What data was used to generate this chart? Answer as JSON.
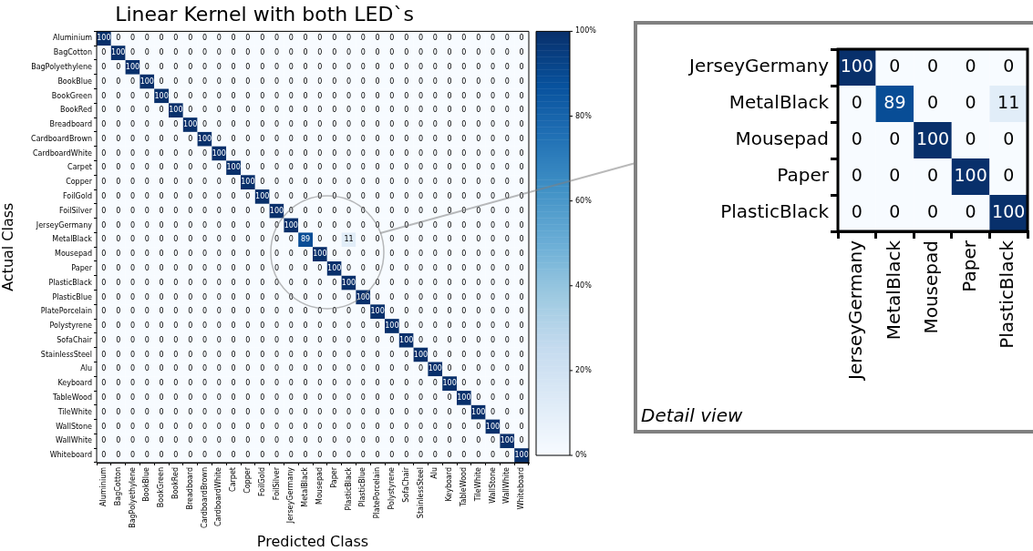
{
  "chart_data": [
    {
      "type": "heatmap",
      "title": "Linear Kernel with both LED`s",
      "xlabel": "Predicted Class",
      "ylabel": "Actual Class",
      "categories": [
        "Aluminium",
        "BagCotton",
        "BagPolyethylene",
        "BookBlue",
        "BookGreen",
        "BookRed",
        "Breadboard",
        "CardboardBrown",
        "CardboardWhite",
        "Carpet",
        "Copper",
        "FoilGold",
        "FoilSilver",
        "JerseyGermany",
        "MetalBlack",
        "Mousepad",
        "Paper",
        "PlasticBlack",
        "PlasticBlue",
        "PlatePorcelain",
        "Polystyrene",
        "SofaChair",
        "StainlessSteel",
        "Alu",
        "Keyboard",
        "TableWood",
        "TileWhite",
        "WallStone",
        "WallWhite",
        "Whiteboard"
      ],
      "y_categories": [
        "Aluminium",
        "BagCotton",
        "BagPolyethylene",
        "BookBlue",
        "BookGreen",
        "BookRed",
        "Breadboard",
        "CardboardBrown",
        "CardboardWhite",
        "Carpet",
        "Copper",
        "FoilGold",
        "FoilSilver",
        "JerseyGermany",
        "MetalBlack",
        "Mousepad",
        "Paper",
        "PlasticBlack",
        "PlasticBlue",
        "PlatePorcelain",
        "Polystyrene",
        "SofaChair",
        "StainlessSteel",
        "Alu",
        "Keyboard",
        "TableWood",
        "TileWhite",
        "WallStone",
        "WallWhite",
        "Whiteboard"
      ],
      "cells": [
        [
          100,
          0,
          0,
          0,
          0,
          0,
          0,
          0,
          0,
          0,
          0,
          0,
          0,
          0,
          0,
          0,
          0,
          0,
          0,
          0,
          0,
          0,
          0,
          0,
          0,
          0,
          0,
          0,
          0,
          0
        ],
        [
          0,
          100,
          0,
          0,
          0,
          0,
          0,
          0,
          0,
          0,
          0,
          0,
          0,
          0,
          0,
          0,
          0,
          0,
          0,
          0,
          0,
          0,
          0,
          0,
          0,
          0,
          0,
          0,
          0,
          0
        ],
        [
          0,
          0,
          100,
          0,
          0,
          0,
          0,
          0,
          0,
          0,
          0,
          0,
          0,
          0,
          0,
          0,
          0,
          0,
          0,
          0,
          0,
          0,
          0,
          0,
          0,
          0,
          0,
          0,
          0,
          0
        ],
        [
          0,
          0,
          0,
          100,
          0,
          0,
          0,
          0,
          0,
          0,
          0,
          0,
          0,
          0,
          0,
          0,
          0,
          0,
          0,
          0,
          0,
          0,
          0,
          0,
          0,
          0,
          0,
          0,
          0,
          0
        ],
        [
          0,
          0,
          0,
          0,
          100,
          0,
          0,
          0,
          0,
          0,
          0,
          0,
          0,
          0,
          0,
          0,
          0,
          0,
          0,
          0,
          0,
          0,
          0,
          0,
          0,
          0,
          0,
          0,
          0,
          0
        ],
        [
          0,
          0,
          0,
          0,
          0,
          100,
          0,
          0,
          0,
          0,
          0,
          0,
          0,
          0,
          0,
          0,
          0,
          0,
          0,
          0,
          0,
          0,
          0,
          0,
          0,
          0,
          0,
          0,
          0,
          0
        ],
        [
          0,
          0,
          0,
          0,
          0,
          0,
          100,
          0,
          0,
          0,
          0,
          0,
          0,
          0,
          0,
          0,
          0,
          0,
          0,
          0,
          0,
          0,
          0,
          0,
          0,
          0,
          0,
          0,
          0,
          0
        ],
        [
          0,
          0,
          0,
          0,
          0,
          0,
          0,
          100,
          0,
          0,
          0,
          0,
          0,
          0,
          0,
          0,
          0,
          0,
          0,
          0,
          0,
          0,
          0,
          0,
          0,
          0,
          0,
          0,
          0,
          0
        ],
        [
          0,
          0,
          0,
          0,
          0,
          0,
          0,
          0,
          100,
          0,
          0,
          0,
          0,
          0,
          0,
          0,
          0,
          0,
          0,
          0,
          0,
          0,
          0,
          0,
          0,
          0,
          0,
          0,
          0,
          0
        ],
        [
          0,
          0,
          0,
          0,
          0,
          0,
          0,
          0,
          0,
          100,
          0,
          0,
          0,
          0,
          0,
          0,
          0,
          0,
          0,
          0,
          0,
          0,
          0,
          0,
          0,
          0,
          0,
          0,
          0,
          0
        ],
        [
          0,
          0,
          0,
          0,
          0,
          0,
          0,
          0,
          0,
          0,
          100,
          0,
          0,
          0,
          0,
          0,
          0,
          0,
          0,
          0,
          0,
          0,
          0,
          0,
          0,
          0,
          0,
          0,
          0,
          0
        ],
        [
          0,
          0,
          0,
          0,
          0,
          0,
          0,
          0,
          0,
          0,
          0,
          100,
          0,
          0,
          0,
          0,
          0,
          0,
          0,
          0,
          0,
          0,
          0,
          0,
          0,
          0,
          0,
          0,
          0,
          0
        ],
        [
          0,
          0,
          0,
          0,
          0,
          0,
          0,
          0,
          0,
          0,
          0,
          0,
          100,
          0,
          0,
          0,
          0,
          0,
          0,
          0,
          0,
          0,
          0,
          0,
          0,
          0,
          0,
          0,
          0,
          0
        ],
        [
          0,
          0,
          0,
          0,
          0,
          0,
          0,
          0,
          0,
          0,
          0,
          0,
          0,
          100,
          0,
          0,
          0,
          0,
          0,
          0,
          0,
          0,
          0,
          0,
          0,
          0,
          0,
          0,
          0,
          0
        ],
        [
          0,
          0,
          0,
          0,
          0,
          0,
          0,
          0,
          0,
          0,
          0,
          0,
          0,
          0,
          89,
          0,
          0,
          11,
          0,
          0,
          0,
          0,
          0,
          0,
          0,
          0,
          0,
          0,
          0,
          0
        ],
        [
          0,
          0,
          0,
          0,
          0,
          0,
          0,
          0,
          0,
          0,
          0,
          0,
          0,
          0,
          0,
          100,
          0,
          0,
          0,
          0,
          0,
          0,
          0,
          0,
          0,
          0,
          0,
          0,
          0,
          0
        ],
        [
          0,
          0,
          0,
          0,
          0,
          0,
          0,
          0,
          0,
          0,
          0,
          0,
          0,
          0,
          0,
          0,
          100,
          0,
          0,
          0,
          0,
          0,
          0,
          0,
          0,
          0,
          0,
          0,
          0,
          0
        ],
        [
          0,
          0,
          0,
          0,
          0,
          0,
          0,
          0,
          0,
          0,
          0,
          0,
          0,
          0,
          0,
          0,
          0,
          100,
          0,
          0,
          0,
          0,
          0,
          0,
          0,
          0,
          0,
          0,
          0,
          0
        ],
        [
          0,
          0,
          0,
          0,
          0,
          0,
          0,
          0,
          0,
          0,
          0,
          0,
          0,
          0,
          0,
          0,
          0,
          0,
          100,
          0,
          0,
          0,
          0,
          0,
          0,
          0,
          0,
          0,
          0,
          0
        ],
        [
          0,
          0,
          0,
          0,
          0,
          0,
          0,
          0,
          0,
          0,
          0,
          0,
          0,
          0,
          0,
          0,
          0,
          0,
          0,
          100,
          0,
          0,
          0,
          0,
          0,
          0,
          0,
          0,
          0,
          0
        ],
        [
          0,
          0,
          0,
          0,
          0,
          0,
          0,
          0,
          0,
          0,
          0,
          0,
          0,
          0,
          0,
          0,
          0,
          0,
          0,
          0,
          100,
          0,
          0,
          0,
          0,
          0,
          0,
          0,
          0,
          0
        ],
        [
          0,
          0,
          0,
          0,
          0,
          0,
          0,
          0,
          0,
          0,
          0,
          0,
          0,
          0,
          0,
          0,
          0,
          0,
          0,
          0,
          0,
          100,
          0,
          0,
          0,
          0,
          0,
          0,
          0,
          0
        ],
        [
          0,
          0,
          0,
          0,
          0,
          0,
          0,
          0,
          0,
          0,
          0,
          0,
          0,
          0,
          0,
          0,
          0,
          0,
          0,
          0,
          0,
          0,
          100,
          0,
          0,
          0,
          0,
          0,
          0,
          0
        ],
        [
          0,
          0,
          0,
          0,
          0,
          0,
          0,
          0,
          0,
          0,
          0,
          0,
          0,
          0,
          0,
          0,
          0,
          0,
          0,
          0,
          0,
          0,
          0,
          100,
          0,
          0,
          0,
          0,
          0,
          0
        ],
        [
          0,
          0,
          0,
          0,
          0,
          0,
          0,
          0,
          0,
          0,
          0,
          0,
          0,
          0,
          0,
          0,
          0,
          0,
          0,
          0,
          0,
          0,
          0,
          0,
          100,
          0,
          0,
          0,
          0,
          0
        ],
        [
          0,
          0,
          0,
          0,
          0,
          0,
          0,
          0,
          0,
          0,
          0,
          0,
          0,
          0,
          0,
          0,
          0,
          0,
          0,
          0,
          0,
          0,
          0,
          0,
          0,
          100,
          0,
          0,
          0,
          0
        ],
        [
          0,
          0,
          0,
          0,
          0,
          0,
          0,
          0,
          0,
          0,
          0,
          0,
          0,
          0,
          0,
          0,
          0,
          0,
          0,
          0,
          0,
          0,
          0,
          0,
          0,
          0,
          100,
          0,
          0,
          0
        ],
        [
          0,
          0,
          0,
          0,
          0,
          0,
          0,
          0,
          0,
          0,
          0,
          0,
          0,
          0,
          0,
          0,
          0,
          0,
          0,
          0,
          0,
          0,
          0,
          0,
          0,
          0,
          0,
          100,
          0,
          0
        ],
        [
          0,
          0,
          0,
          0,
          0,
          0,
          0,
          0,
          0,
          0,
          0,
          0,
          0,
          0,
          0,
          0,
          0,
          0,
          0,
          0,
          0,
          0,
          0,
          0,
          0,
          0,
          0,
          0,
          100,
          0
        ],
        [
          0,
          0,
          0,
          0,
          0,
          0,
          0,
          0,
          0,
          0,
          0,
          0,
          0,
          0,
          0,
          0,
          0,
          0,
          0,
          0,
          0,
          0,
          0,
          0,
          0,
          0,
          0,
          0,
          0,
          100
        ]
      ],
      "clim": [
        0,
        100
      ],
      "cticks": [
        {
          "value": 0,
          "label": "0%"
        },
        {
          "value": 20,
          "label": "20%"
        },
        {
          "value": 40,
          "label": "40%"
        },
        {
          "value": 60,
          "label": "60%"
        },
        {
          "value": 80,
          "label": "80%"
        },
        {
          "value": 100,
          "label": "100%"
        }
      ],
      "data_labels": true,
      "grid": false,
      "legend": false
    },
    {
      "type": "heatmap",
      "annotations": [
        "Detail view"
      ],
      "categories": [
        "JerseyGermany",
        "MetalBlack",
        "Mousepad",
        "Paper",
        "PlasticBlack"
      ],
      "y_categories": [
        "JerseyGermany",
        "MetalBlack",
        "Mousepad",
        "Paper",
        "PlasticBlack"
      ],
      "cells": [
        [
          100,
          0,
          0,
          0,
          0
        ],
        [
          0,
          89,
          0,
          0,
          11
        ],
        [
          0,
          0,
          100,
          0,
          0
        ],
        [
          0,
          0,
          0,
          100,
          0
        ],
        [
          0,
          0,
          0,
          0,
          100
        ]
      ],
      "data_labels": true,
      "grid": false,
      "legend": false
    }
  ]
}
